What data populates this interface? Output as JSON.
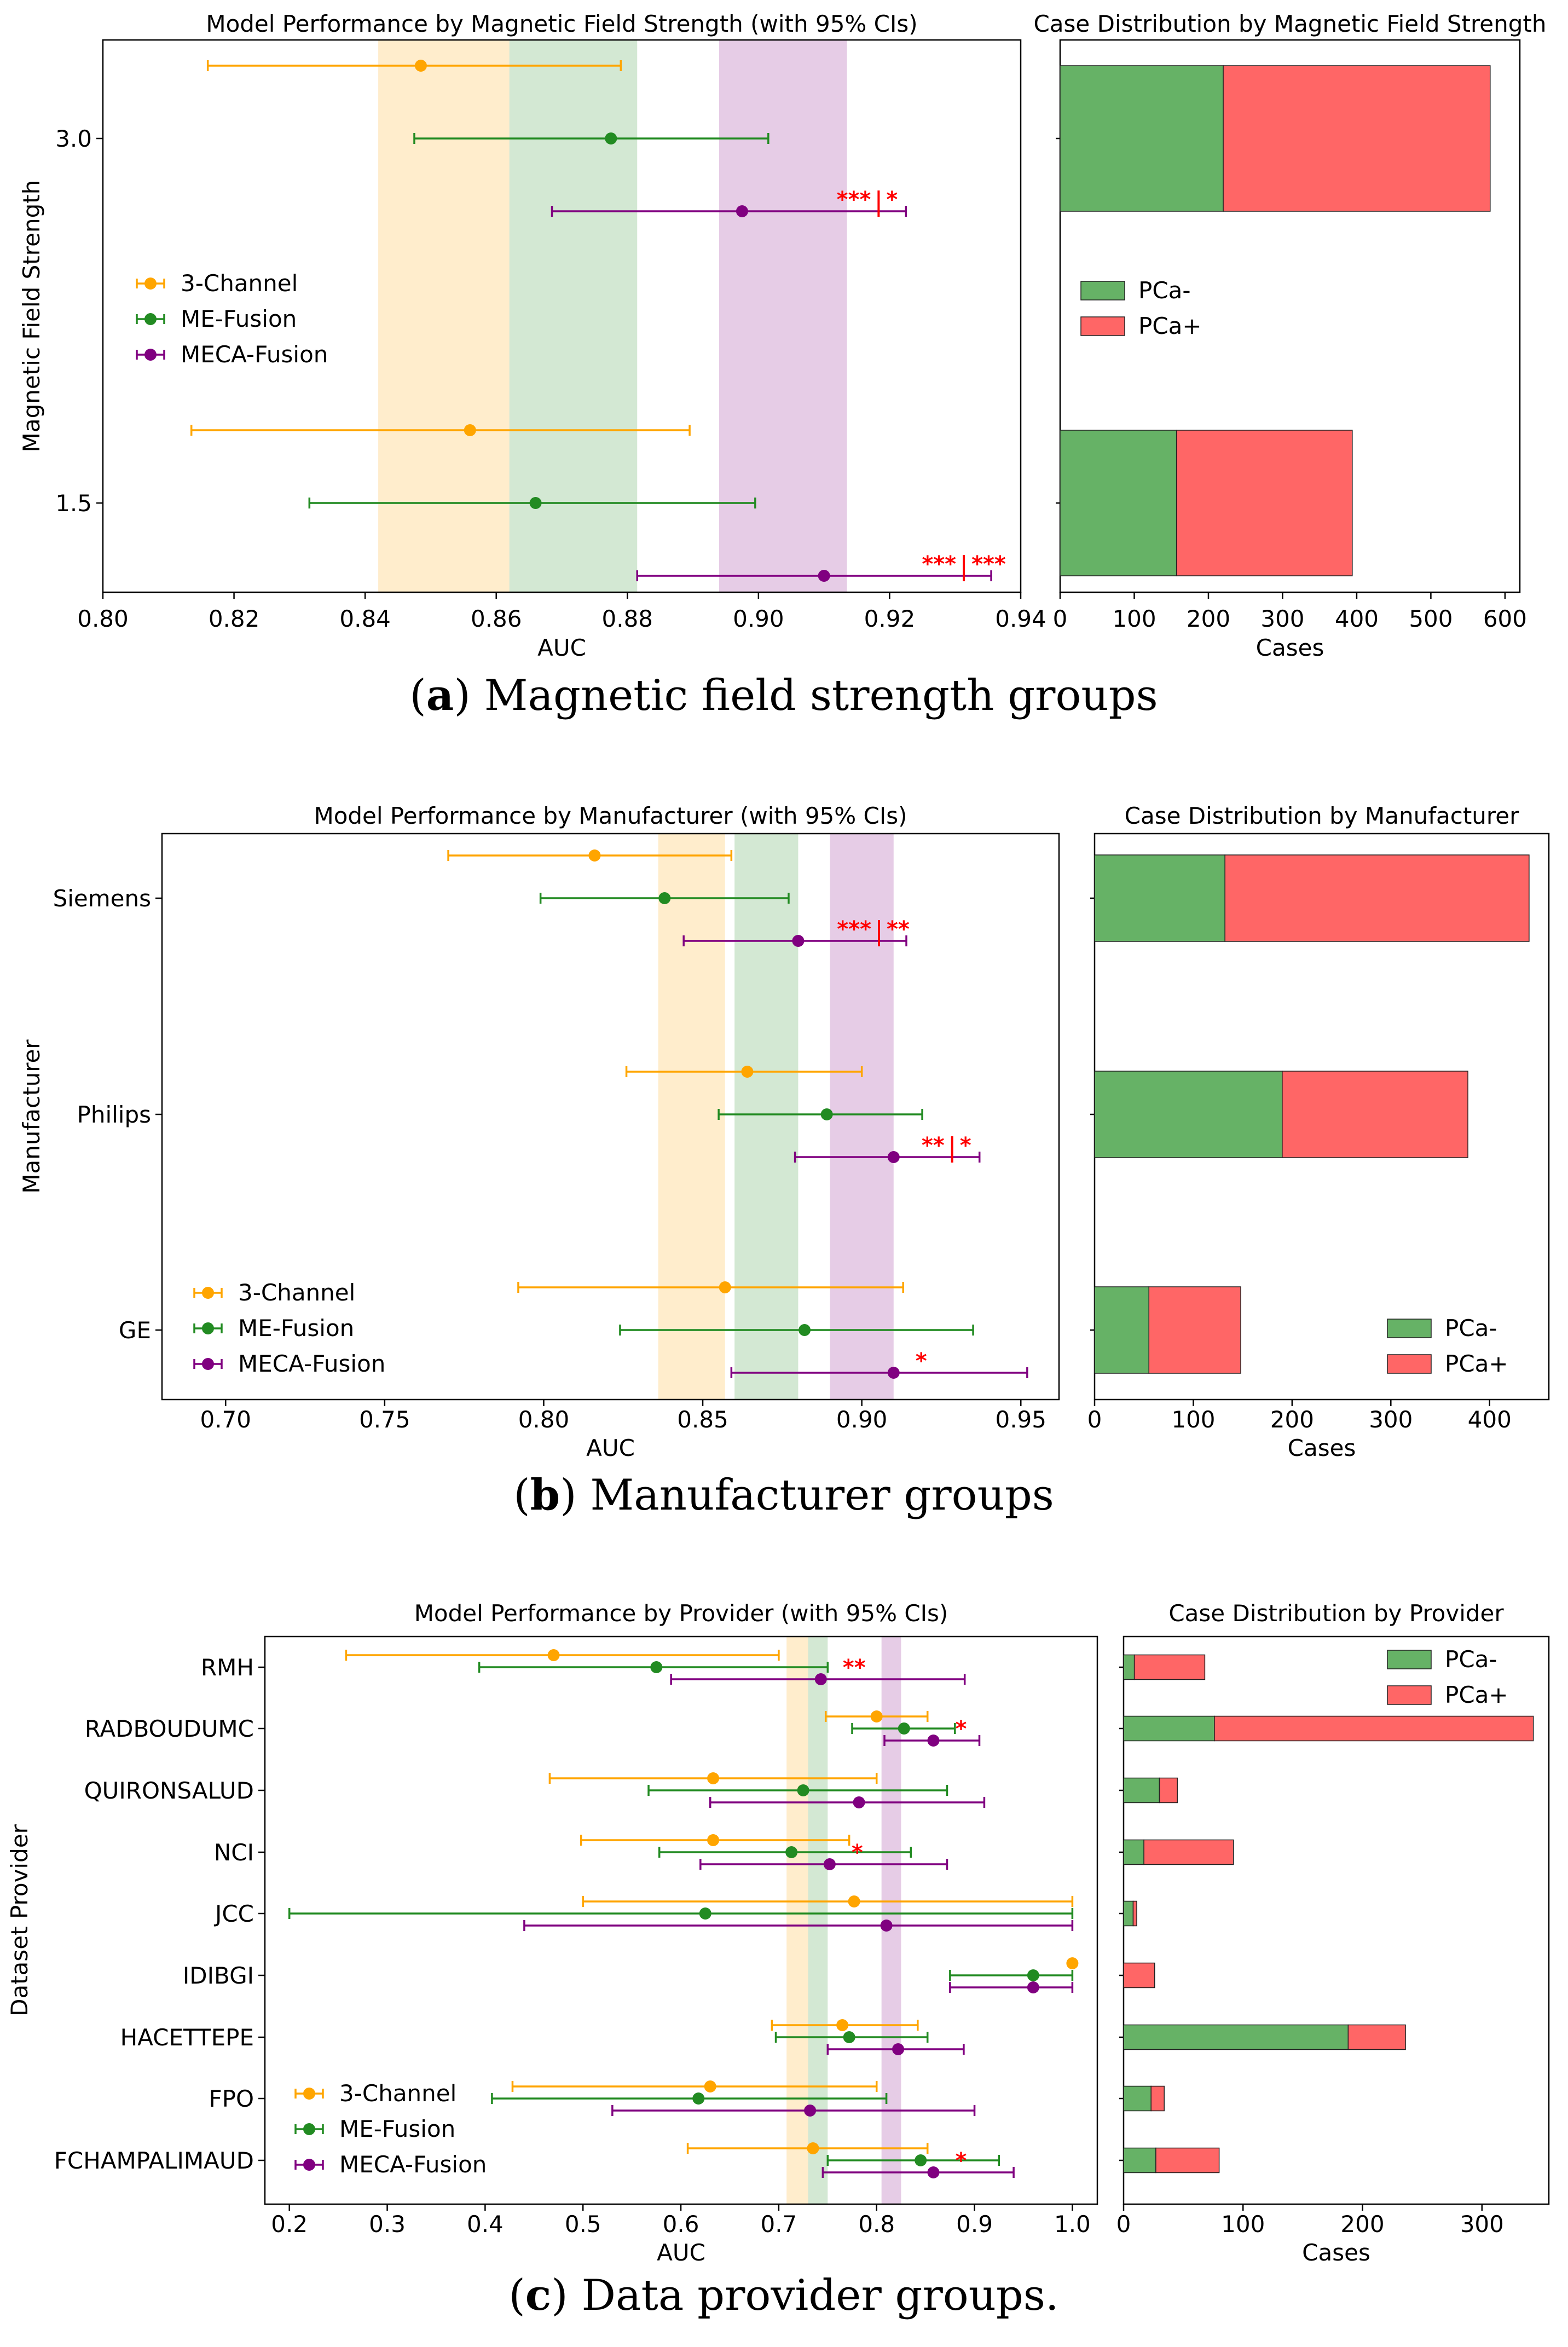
{
  "colors": {
    "three": "#FFA500",
    "me": "#228B22",
    "meca": "#800080",
    "neg": "#66B266",
    "pos": "#FF6666",
    "sig": "#FF0000"
  },
  "captions": [
    {
      "letter": "a",
      "paren_open": "(",
      "paren_close": ")",
      "text": " Magnetic field strength groups"
    },
    {
      "letter": "b",
      "paren_open": "(",
      "paren_close": ")",
      "text": " Manufacturer groups"
    },
    {
      "letter": "c",
      "paren_open": "(",
      "paren_close": ")",
      "text": " Data provider groups."
    }
  ],
  "chart_data": [
    {
      "type": "errorbar",
      "title": "Model Performance by Magnetic Field Strength (with 95% CIs)",
      "xlabel": "AUC",
      "ylabel": "Magnetic Field Strength",
      "xlim": [
        0.8,
        0.94
      ],
      "xticks": [
        "0.80",
        "0.82",
        "0.84",
        "0.86",
        "0.88",
        "0.90",
        "0.92",
        "0.94"
      ],
      "categories": [
        "3.0",
        "1.5"
      ],
      "legend_position": "center-left",
      "overall_bands": {
        "3-Channel": [
          0.842,
          0.862
        ],
        "ME-Fusion": [
          0.862,
          0.8815
        ],
        "MECA-Fusion": [
          0.894,
          0.9135
        ]
      },
      "series": [
        {
          "name": "3-Channel",
          "auc": [
            0.8485,
            0.856
          ],
          "lo": [
            0.816,
            0.8135
          ],
          "hi": [
            0.879,
            0.8895
          ]
        },
        {
          "name": "ME-Fusion",
          "auc": [
            0.8775,
            0.866
          ],
          "lo": [
            0.8475,
            0.8315
          ],
          "hi": [
            0.9015,
            0.8995
          ]
        },
        {
          "name": "MECA-Fusion",
          "auc": [
            0.8975,
            0.91
          ],
          "lo": [
            0.8685,
            0.8815
          ],
          "hi": [
            0.9225,
            0.9355
          ]
        }
      ],
      "significance": [
        {
          "category": "3.0",
          "left": "***",
          "right": "*"
        },
        {
          "category": "1.5",
          "left": "***",
          "right": "***"
        }
      ]
    },
    {
      "type": "bar",
      "orientation": "horizontal-stacked",
      "title": "Case Distribution by Magnetic Field Strength",
      "xlabel": "Cases",
      "xlim": [
        0,
        620
      ],
      "xticks": [
        "0",
        "100",
        "200",
        "300",
        "400",
        "500",
        "600"
      ],
      "categories": [
        "3.0",
        "1.5"
      ],
      "legend_position": "center",
      "series": [
        {
          "name": "PCa-",
          "values": [
            220,
            157
          ]
        },
        {
          "name": "PCa+",
          "values": [
            360,
            237
          ]
        }
      ]
    },
    {
      "type": "errorbar",
      "title": "Model Performance by Manufacturer (with 95% CIs)",
      "xlabel": "AUC",
      "ylabel": "Manufacturer",
      "xlim": [
        0.68,
        0.962
      ],
      "xticks": [
        "0.70",
        "0.75",
        "0.80",
        "0.85",
        "0.90",
        "0.95"
      ],
      "categories": [
        "Siemens",
        "Philips",
        "GE"
      ],
      "legend_position": "lower-left",
      "overall_bands": {
        "3-Channel": [
          0.836,
          0.857
        ],
        "ME-Fusion": [
          0.86,
          0.88
        ],
        "MECA-Fusion": [
          0.89,
          0.91
        ]
      },
      "series": [
        {
          "name": "3-Channel",
          "auc": [
            0.816,
            0.864,
            0.857
          ],
          "lo": [
            0.77,
            0.826,
            0.792
          ],
          "hi": [
            0.859,
            0.9,
            0.913
          ]
        },
        {
          "name": "ME-Fusion",
          "auc": [
            0.838,
            0.889,
            0.882
          ],
          "lo": [
            0.799,
            0.855,
            0.824
          ],
          "hi": [
            0.877,
            0.919,
            0.935
          ]
        },
        {
          "name": "MECA-Fusion",
          "auc": [
            0.88,
            0.91,
            0.91
          ],
          "lo": [
            0.844,
            0.879,
            0.859
          ],
          "hi": [
            0.914,
            0.937,
            0.952
          ]
        }
      ],
      "significance": [
        {
          "category": "Siemens",
          "left": "***",
          "right": "**"
        },
        {
          "category": "Philips",
          "left": "**",
          "right": "*"
        },
        {
          "category": "GE",
          "left": "",
          "right": "*"
        }
      ]
    },
    {
      "type": "bar",
      "orientation": "horizontal-stacked",
      "title": "Case Distribution by Manufacturer",
      "xlabel": "Cases",
      "xlim": [
        0,
        460
      ],
      "xticks": [
        "0",
        "100",
        "200",
        "300",
        "400"
      ],
      "categories": [
        "Siemens",
        "Philips",
        "GE"
      ],
      "legend_position": "lower-right",
      "series": [
        {
          "name": "PCa-",
          "values": [
            132,
            190,
            55
          ]
        },
        {
          "name": "PCa+",
          "values": [
            308,
            188,
            93
          ]
        }
      ]
    },
    {
      "type": "errorbar",
      "title": "Model Performance by Provider (with 95% CIs)",
      "xlabel": "AUC",
      "ylabel": "Dataset Provider",
      "xlim": [
        0.175,
        1.0255
      ],
      "xticks": [
        "0.2",
        "0.3",
        "0.4",
        "0.5",
        "0.6",
        "0.7",
        "0.8",
        "0.9",
        "1.0"
      ],
      "categories": [
        "RMH",
        "RADBOUDUMC",
        "QUIRONSALUD",
        "NCI",
        "JCC",
        "IDIBGI",
        "HACETTEPE",
        "FPO",
        "FCHAMPALIMAUD"
      ],
      "legend_position": "lower-left",
      "overall_bands": {
        "3-Channel": [
          0.708,
          0.73
        ],
        "ME-Fusion": [
          0.73,
          0.75
        ],
        "MECA-Fusion": [
          0.805,
          0.825
        ]
      },
      "series": [
        {
          "name": "3-Channel",
          "auc": [
            0.47,
            0.8,
            0.633,
            0.633,
            0.777,
            null,
            0.765,
            0.63,
            0.735
          ],
          "lo": [
            0.258,
            0.748,
            0.466,
            0.498,
            0.5,
            null,
            0.693,
            0.428,
            0.607
          ],
          "hi": [
            0.7,
            0.852,
            0.8,
            0.772,
            1.0,
            null,
            0.842,
            0.8,
            0.852
          ]
        },
        {
          "name": "ME-Fusion",
          "auc": [
            0.575,
            0.828,
            0.725,
            0.713,
            0.625,
            0.96,
            0.772,
            0.618,
            0.845
          ],
          "lo": [
            0.394,
            0.775,
            0.567,
            0.578,
            0.2,
            0.875,
            0.697,
            0.407,
            0.75
          ],
          "hi": [
            0.75,
            0.88,
            0.872,
            0.835,
            1.0,
            1.0,
            0.852,
            0.81,
            0.925
          ]
        },
        {
          "name": "MECA-Fusion",
          "auc": [
            0.743,
            0.858,
            0.782,
            0.752,
            0.81,
            0.96,
            0.822,
            0.732,
            0.858
          ],
          "lo": [
            0.59,
            0.808,
            0.63,
            0.62,
            0.44,
            0.875,
            0.75,
            0.53,
            0.745
          ],
          "hi": [
            0.89,
            0.905,
            0.91,
            0.872,
            1.0,
            1.0,
            0.889,
            0.9,
            0.94
          ]
        }
      ],
      "single_points": [
        {
          "category": "IDIBGI",
          "series": "3-Channel",
          "auc": 1.0
        }
      ],
      "significance": [
        {
          "category": "RMH",
          "left": "",
          "right": "**"
        },
        {
          "category": "RADBOUDUMC",
          "left": "",
          "right": "*"
        },
        {
          "category": "NCI",
          "left": "",
          "right": "*"
        },
        {
          "category": "FCHAMPALIMAUD",
          "left": "",
          "right": "*"
        }
      ]
    },
    {
      "type": "bar",
      "orientation": "horizontal-stacked",
      "title": "Case Distribution by Provider",
      "xlabel": "Cases",
      "xlim": [
        0,
        356
      ],
      "xticks": [
        "0",
        "100",
        "200",
        "300"
      ],
      "categories": [
        "RMH",
        "RADBOUDUMC",
        "QUIRONSALUD",
        "NCI",
        "JCC",
        "IDIBGI",
        "HACETTEPE",
        "FPO",
        "FCHAMPALIMAUD"
      ],
      "legend_position": "upper-right",
      "series": [
        {
          "name": "PCa-",
          "values": [
            9,
            76,
            30,
            17,
            8,
            0,
            188,
            23,
            27
          ]
        },
        {
          "name": "PCa+",
          "values": [
            59,
            267,
            15,
            75,
            3,
            26,
            48,
            11,
            53
          ]
        }
      ]
    }
  ]
}
